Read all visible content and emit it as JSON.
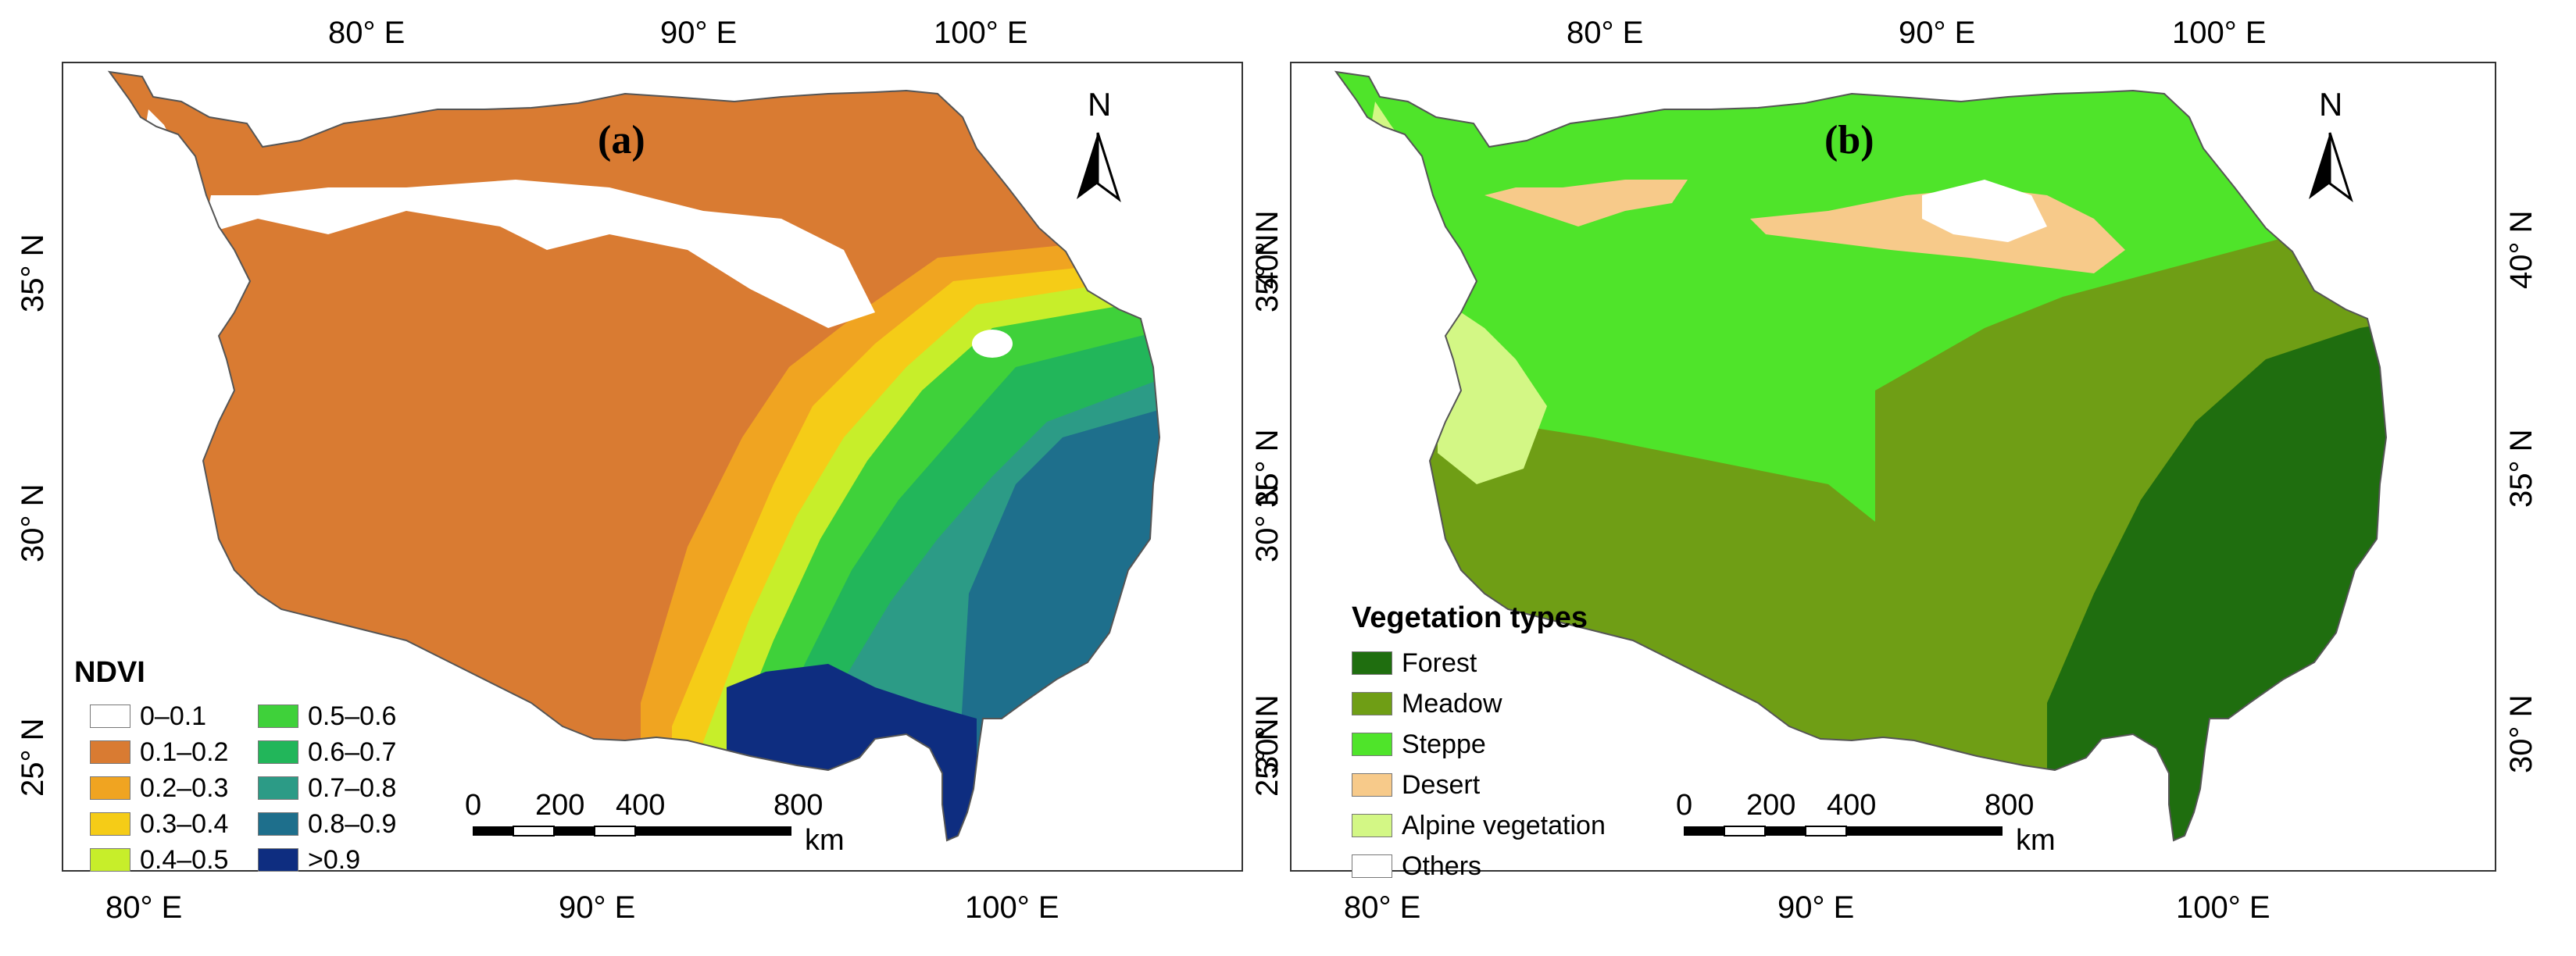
{
  "panels": {
    "a": {
      "letter": "(a)",
      "top_ticks": [
        "80° E",
        "90° E",
        "100° E"
      ],
      "bottom_ticks": [
        "80° E",
        "90° E",
        "100° E"
      ],
      "left_ticks": [
        "35° N",
        "30° N",
        "25° N"
      ],
      "right_ticks": [
        "40° N",
        "35° N",
        "30° N"
      ],
      "north": "N",
      "legend": {
        "title": "NDVI",
        "items": [
          {
            "label": "0–0.1",
            "color": "#ffffff"
          },
          {
            "label": "0.1–0.2",
            "color": "#d97b32"
          },
          {
            "label": "0.2–0.3",
            "color": "#f0a421"
          },
          {
            "label": "0.3–0.4",
            "color": "#f5cc17"
          },
          {
            "label": "0.4–0.5",
            "color": "#c7ee2a"
          },
          {
            "label": "0.5–0.6",
            "color": "#3fd13a"
          },
          {
            "label": "0.6–0.7",
            "color": "#22b65a"
          },
          {
            "label": "0.7–0.8",
            "color": "#2c9b86"
          },
          {
            "label": "0.8–0.9",
            "color": "#1e6f8c"
          },
          {
            "label": ">0.9",
            "color": "#0e2d80"
          }
        ]
      },
      "scale": {
        "ticks": [
          "0",
          "200",
          "400",
          "800"
        ],
        "unit": "km"
      }
    },
    "b": {
      "letter": "(b)",
      "top_ticks": [
        "80° E",
        "90° E",
        "100° E"
      ],
      "bottom_ticks": [
        "80° E",
        "90° E",
        "100° E"
      ],
      "left_ticks": [
        "35° N",
        "30° N",
        "25° N"
      ],
      "right_ticks": [
        "40° N",
        "35° N",
        "30° N"
      ],
      "north": "N",
      "legend": {
        "title": "Vegetation types",
        "items": [
          {
            "label": "Forest",
            "color": "#1f6e0f"
          },
          {
            "label": "Meadow",
            "color": "#6f9e15"
          },
          {
            "label": "Steppe",
            "color": "#4fe42a"
          },
          {
            "label": "Desert",
            "color": "#f7ca8a"
          },
          {
            "label": "Alpine vegetation",
            "color": "#d3f785"
          },
          {
            "label": "Others",
            "color": "#ffffff"
          }
        ]
      },
      "scale": {
        "ticks": [
          "0",
          "200",
          "400",
          "800"
        ],
        "unit": "km"
      }
    }
  }
}
